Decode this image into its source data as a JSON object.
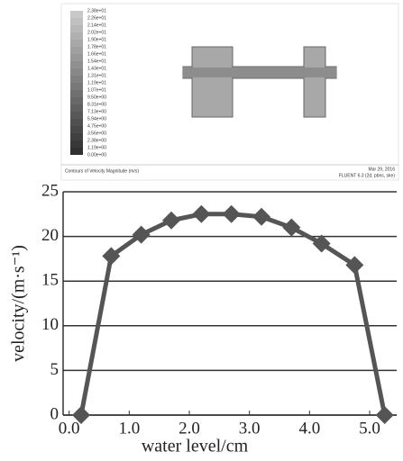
{
  "figure": {
    "colorbar_labels": [
      "2.38e+01",
      "2.26e+01",
      "2.14e+01",
      "2.02e+01",
      "1.90e+01",
      "1.78e+01",
      "1.66e+01",
      "1.54e+01",
      "1.43e+01",
      "1.31e+01",
      "1.19e+01",
      "1.07e+01",
      "9.50e+00",
      "8.31e+00",
      "7.13e+00",
      "5.94e+00",
      "4.75e+00",
      "3.56e+00",
      "2.38e+00",
      "1.19e+00",
      "0.00e+00"
    ],
    "caption": "Contours of Velocity Magnitude (m/s)",
    "date": "Mar 29, 2016",
    "version": "FLUENT 6.3 (2d, pbns, ske)"
  },
  "chart_data": {
    "type": "line",
    "x_label": "water level/cm",
    "y_label": "velocity/(m·s⁻¹)",
    "x": [
      0.2,
      0.7,
      1.2,
      1.7,
      2.2,
      2.7,
      3.2,
      3.7,
      4.2,
      4.75,
      5.25
    ],
    "series": [
      {
        "color": "#555555",
        "values": [
          0,
          17.8,
          20.2,
          21.8,
          22.5,
          22.5,
          22.2,
          21,
          19.2,
          16.8,
          0
        ]
      }
    ],
    "xlim": [
      -0.1,
      5.45
    ],
    "ylim": [
      0,
      25
    ],
    "xticks": [
      {
        "value": 0,
        "label": "0.0"
      },
      {
        "value": 1,
        "label": "1.0"
      },
      {
        "value": 2,
        "label": "2.0"
      },
      {
        "value": 3,
        "label": "3.0"
      },
      {
        "value": 4,
        "label": "4.0"
      },
      {
        "value": 5,
        "label": "5.0"
      }
    ],
    "yticks": [
      0,
      5,
      10,
      15,
      20,
      25
    ],
    "grid": true
  }
}
